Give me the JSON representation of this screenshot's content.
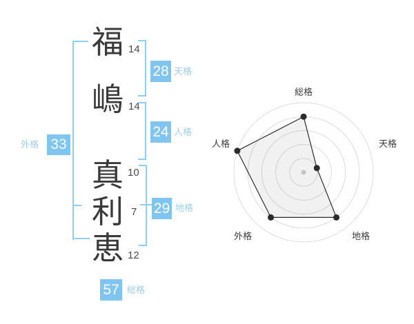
{
  "name": {
    "characters": [
      {
        "char": "福",
        "strokes": "14"
      },
      {
        "char": "嶋",
        "strokes": "14"
      },
      {
        "char": "真",
        "strokes": "10"
      },
      {
        "char": "利",
        "strokes": "7"
      },
      {
        "char": "恵",
        "strokes": "12"
      }
    ]
  },
  "categories": [
    {
      "id": "tenkaku",
      "label": "天格",
      "value": "28"
    },
    {
      "id": "jinkaku",
      "label": "人格",
      "value": "24"
    },
    {
      "id": "chikaku",
      "label": "地格",
      "value": "29"
    },
    {
      "id": "gaikaku",
      "label": "外格",
      "value": "33"
    },
    {
      "id": "soukaku",
      "label": "総格",
      "value": "57"
    }
  ],
  "colors": {
    "badge_blue": "#7fc5f0",
    "category_label_blue": "#9fcfef",
    "bracket_blue": "#8fcdf4",
    "ring_gray": "#dcdcdc",
    "polygon_stroke": "#2b2b2b"
  },
  "chart_data": {
    "type": "radar",
    "title": "",
    "axes": [
      "総格",
      "天格",
      "地格",
      "外格",
      "人格"
    ],
    "values": [
      4,
      1,
      4,
      4,
      5
    ],
    "max": 5,
    "rings": 5,
    "angles_deg": [
      90,
      18,
      -54,
      -126,
      162
    ],
    "grid": "circular",
    "legend": false
  }
}
